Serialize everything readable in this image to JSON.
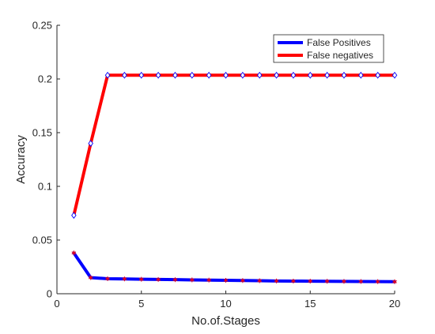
{
  "chart_data": {
    "type": "line",
    "xlabel": "No.of.Stages",
    "ylabel": "Accuracy",
    "xlim": [
      0,
      20
    ],
    "ylim": [
      0,
      0.25
    ],
    "xticks": [
      0,
      5,
      10,
      15,
      20
    ],
    "yticks": [
      0,
      0.05,
      0.1,
      0.15,
      0.2,
      0.25
    ],
    "xtick_labels": [
      "0",
      "5",
      "10",
      "15",
      "20"
    ],
    "ytick_labels": [
      "0",
      "0.05",
      "0.1",
      "0.15",
      "0.2",
      "0.25"
    ],
    "grid": false,
    "legend_position": "top-right",
    "x": [
      1,
      2,
      3,
      4,
      5,
      6,
      7,
      8,
      9,
      10,
      11,
      12,
      13,
      14,
      15,
      16,
      17,
      18,
      19,
      20
    ],
    "series": [
      {
        "name": "False Positives",
        "color": "#0000ff",
        "marker": "asterisk",
        "marker_color": "#ff0000",
        "values": [
          0.038,
          0.015,
          0.014,
          0.0138,
          0.0135,
          0.0133,
          0.0131,
          0.0129,
          0.0127,
          0.0125,
          0.0123,
          0.0121,
          0.0119,
          0.0118,
          0.0117,
          0.0116,
          0.0115,
          0.0114,
          0.0113,
          0.0112
        ]
      },
      {
        "name": "False negatives",
        "color": "#ff0000",
        "marker": "diamond",
        "marker_color": "#0000ff",
        "values": [
          0.073,
          0.14,
          0.2035,
          0.2035,
          0.2035,
          0.2035,
          0.2035,
          0.2035,
          0.2035,
          0.2035,
          0.2035,
          0.2035,
          0.2035,
          0.2035,
          0.2035,
          0.2035,
          0.2035,
          0.2035,
          0.2035,
          0.2035
        ]
      }
    ]
  }
}
